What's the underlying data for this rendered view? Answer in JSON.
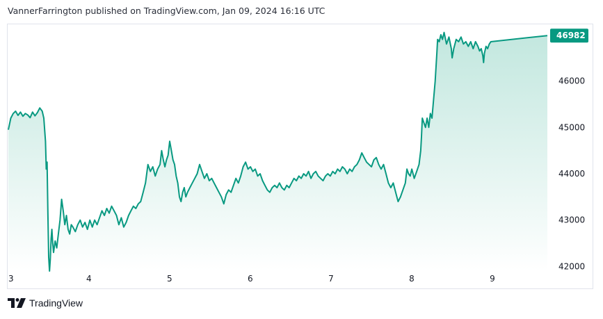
{
  "header": {
    "text": "VannerFarrington published on TradingView.com, Jan 09, 2024 16:16 UTC"
  },
  "footer": {
    "brand": "TradingView"
  },
  "colors": {
    "line": "#089981",
    "fill_top": "#bfe6dd",
    "fill_bottom": "#ffffff",
    "tag_bg": "#089981",
    "border": "#e0e3eb"
  },
  "chart_data": {
    "type": "area",
    "xlabel": "",
    "ylabel": "",
    "xlim": [
      3,
      9.68
    ],
    "ylim": [
      41900,
      47180
    ],
    "x_ticks": [
      3,
      4,
      5,
      6,
      7,
      8,
      9
    ],
    "x_tick_labels": [
      "3",
      "4",
      "5",
      "6",
      "7",
      "8",
      "9"
    ],
    "y_ticks": [
      42000,
      43000,
      44000,
      45000,
      46000
    ],
    "y_tick_labels": [
      "42000",
      "43000",
      "44000",
      "45000",
      "46000"
    ],
    "last_value": 46982,
    "last_value_label": "46982",
    "grid": false,
    "series": [
      {
        "values": [
          [
            3.0,
            44950
          ],
          [
            3.03,
            45200
          ],
          [
            3.06,
            45300
          ],
          [
            3.09,
            45350
          ],
          [
            3.12,
            45260
          ],
          [
            3.15,
            45330
          ],
          [
            3.18,
            45240
          ],
          [
            3.21,
            45300
          ],
          [
            3.24,
            45270
          ],
          [
            3.27,
            45210
          ],
          [
            3.3,
            45330
          ],
          [
            3.33,
            45250
          ],
          [
            3.36,
            45320
          ],
          [
            3.39,
            45420
          ],
          [
            3.42,
            45350
          ],
          [
            3.44,
            45200
          ],
          [
            3.46,
            44700
          ],
          [
            3.47,
            44100
          ],
          [
            3.48,
            44250
          ],
          [
            3.49,
            43200
          ],
          [
            3.5,
            42200
          ],
          [
            3.51,
            41900
          ],
          [
            3.52,
            42150
          ],
          [
            3.53,
            42600
          ],
          [
            3.54,
            42800
          ],
          [
            3.55,
            42500
          ],
          [
            3.56,
            42300
          ],
          [
            3.58,
            42550
          ],
          [
            3.6,
            42400
          ],
          [
            3.62,
            42700
          ],
          [
            3.64,
            43000
          ],
          [
            3.66,
            43450
          ],
          [
            3.68,
            43200
          ],
          [
            3.7,
            42900
          ],
          [
            3.72,
            43100
          ],
          [
            3.74,
            42800
          ],
          [
            3.76,
            42700
          ],
          [
            3.78,
            42900
          ],
          [
            3.8,
            42850
          ],
          [
            3.83,
            42750
          ],
          [
            3.86,
            42900
          ],
          [
            3.89,
            43000
          ],
          [
            3.92,
            42850
          ],
          [
            3.95,
            42950
          ],
          [
            3.98,
            42800
          ],
          [
            4.01,
            43000
          ],
          [
            4.04,
            42850
          ],
          [
            4.07,
            43000
          ],
          [
            4.1,
            42900
          ],
          [
            4.13,
            43050
          ],
          [
            4.16,
            43200
          ],
          [
            4.19,
            43100
          ],
          [
            4.22,
            43250
          ],
          [
            4.25,
            43150
          ],
          [
            4.28,
            43300
          ],
          [
            4.31,
            43200
          ],
          [
            4.34,
            43100
          ],
          [
            4.37,
            42900
          ],
          [
            4.4,
            43050
          ],
          [
            4.43,
            42850
          ],
          [
            4.46,
            42950
          ],
          [
            4.49,
            43100
          ],
          [
            4.52,
            43200
          ],
          [
            4.55,
            43300
          ],
          [
            4.58,
            43250
          ],
          [
            4.61,
            43350
          ],
          [
            4.64,
            43400
          ],
          [
            4.67,
            43600
          ],
          [
            4.7,
            43800
          ],
          [
            4.73,
            44200
          ],
          [
            4.76,
            44050
          ],
          [
            4.79,
            44150
          ],
          [
            4.82,
            43950
          ],
          [
            4.85,
            44100
          ],
          [
            4.88,
            44200
          ],
          [
            4.9,
            44500
          ],
          [
            4.92,
            44300
          ],
          [
            4.94,
            44150
          ],
          [
            4.96,
            44300
          ],
          [
            4.98,
            44400
          ],
          [
            5.0,
            44700
          ],
          [
            5.02,
            44500
          ],
          [
            5.04,
            44300
          ],
          [
            5.06,
            44200
          ],
          [
            5.08,
            43950
          ],
          [
            5.1,
            43800
          ],
          [
            5.12,
            43500
          ],
          [
            5.14,
            43400
          ],
          [
            5.16,
            43600
          ],
          [
            5.18,
            43700
          ],
          [
            5.2,
            43500
          ],
          [
            5.22,
            43600
          ],
          [
            5.25,
            43700
          ],
          [
            5.28,
            43800
          ],
          [
            5.31,
            43900
          ],
          [
            5.34,
            44000
          ],
          [
            5.37,
            44200
          ],
          [
            5.4,
            44050
          ],
          [
            5.43,
            43900
          ],
          [
            5.46,
            44000
          ],
          [
            5.49,
            43850
          ],
          [
            5.52,
            43900
          ],
          [
            5.55,
            43800
          ],
          [
            5.58,
            43700
          ],
          [
            5.61,
            43600
          ],
          [
            5.64,
            43500
          ],
          [
            5.67,
            43350
          ],
          [
            5.7,
            43550
          ],
          [
            5.73,
            43650
          ],
          [
            5.76,
            43600
          ],
          [
            5.79,
            43750
          ],
          [
            5.82,
            43900
          ],
          [
            5.85,
            43800
          ],
          [
            5.88,
            43950
          ],
          [
            5.91,
            44150
          ],
          [
            5.94,
            44250
          ],
          [
            5.97,
            44100
          ],
          [
            6.0,
            44150
          ],
          [
            6.03,
            44050
          ],
          [
            6.06,
            44100
          ],
          [
            6.09,
            43950
          ],
          [
            6.12,
            44000
          ],
          [
            6.15,
            43850
          ],
          [
            6.18,
            43750
          ],
          [
            6.21,
            43650
          ],
          [
            6.24,
            43600
          ],
          [
            6.27,
            43700
          ],
          [
            6.3,
            43750
          ],
          [
            6.33,
            43700
          ],
          [
            6.36,
            43800
          ],
          [
            6.39,
            43700
          ],
          [
            6.42,
            43650
          ],
          [
            6.45,
            43750
          ],
          [
            6.48,
            43700
          ],
          [
            6.51,
            43800
          ],
          [
            6.54,
            43900
          ],
          [
            6.57,
            43850
          ],
          [
            6.6,
            43950
          ],
          [
            6.63,
            43900
          ],
          [
            6.66,
            44000
          ],
          [
            6.69,
            43950
          ],
          [
            6.72,
            44050
          ],
          [
            6.75,
            43900
          ],
          [
            6.78,
            44000
          ],
          [
            6.81,
            44050
          ],
          [
            6.84,
            43950
          ],
          [
            6.87,
            43900
          ],
          [
            6.9,
            43850
          ],
          [
            6.93,
            43950
          ],
          [
            6.96,
            44000
          ],
          [
            6.99,
            43950
          ],
          [
            7.02,
            44050
          ],
          [
            7.05,
            44000
          ],
          [
            7.08,
            44100
          ],
          [
            7.11,
            44050
          ],
          [
            7.14,
            44150
          ],
          [
            7.17,
            44100
          ],
          [
            7.2,
            44000
          ],
          [
            7.23,
            44100
          ],
          [
            7.26,
            44050
          ],
          [
            7.29,
            44150
          ],
          [
            7.32,
            44200
          ],
          [
            7.35,
            44300
          ],
          [
            7.38,
            44450
          ],
          [
            7.41,
            44350
          ],
          [
            7.44,
            44250
          ],
          [
            7.47,
            44200
          ],
          [
            7.5,
            44150
          ],
          [
            7.53,
            44300
          ],
          [
            7.56,
            44350
          ],
          [
            7.59,
            44200
          ],
          [
            7.62,
            44100
          ],
          [
            7.65,
            44200
          ],
          [
            7.68,
            44000
          ],
          [
            7.71,
            43800
          ],
          [
            7.74,
            43700
          ],
          [
            7.77,
            43800
          ],
          [
            7.8,
            43600
          ],
          [
            7.83,
            43400
          ],
          [
            7.86,
            43500
          ],
          [
            7.89,
            43650
          ],
          [
            7.92,
            43800
          ],
          [
            7.94,
            44100
          ],
          [
            7.96,
            44000
          ],
          [
            7.98,
            43950
          ],
          [
            8.0,
            44100
          ],
          [
            8.03,
            43900
          ],
          [
            8.06,
            44050
          ],
          [
            8.09,
            44200
          ],
          [
            8.11,
            44500
          ],
          [
            8.12,
            44800
          ],
          [
            8.13,
            45200
          ],
          [
            8.15,
            45100
          ],
          [
            8.17,
            45000
          ],
          [
            8.19,
            45200
          ],
          [
            8.21,
            45000
          ],
          [
            8.23,
            45300
          ],
          [
            8.25,
            45200
          ],
          [
            8.27,
            45600
          ],
          [
            8.29,
            46000
          ],
          [
            8.31,
            46600
          ],
          [
            8.32,
            46900
          ],
          [
            8.34,
            46850
          ],
          [
            8.36,
            47000
          ],
          [
            8.38,
            46900
          ],
          [
            8.4,
            47050
          ],
          [
            8.43,
            46800
          ],
          [
            8.46,
            46950
          ],
          [
            8.49,
            46700
          ],
          [
            8.5,
            46500
          ],
          [
            8.52,
            46700
          ],
          [
            8.55,
            46900
          ],
          [
            8.58,
            46850
          ],
          [
            8.61,
            46950
          ],
          [
            8.64,
            46800
          ],
          [
            8.67,
            46850
          ],
          [
            8.7,
            46750
          ],
          [
            8.73,
            46850
          ],
          [
            8.76,
            46700
          ],
          [
            8.79,
            46850
          ],
          [
            8.82,
            46750
          ],
          [
            8.84,
            46650
          ],
          [
            8.86,
            46700
          ],
          [
            8.88,
            46550
          ],
          [
            8.89,
            46400
          ],
          [
            8.9,
            46600
          ],
          [
            8.92,
            46750
          ],
          [
            8.94,
            46700
          ],
          [
            8.96,
            46800
          ],
          [
            8.98,
            46850
          ]
        ]
      }
    ]
  }
}
